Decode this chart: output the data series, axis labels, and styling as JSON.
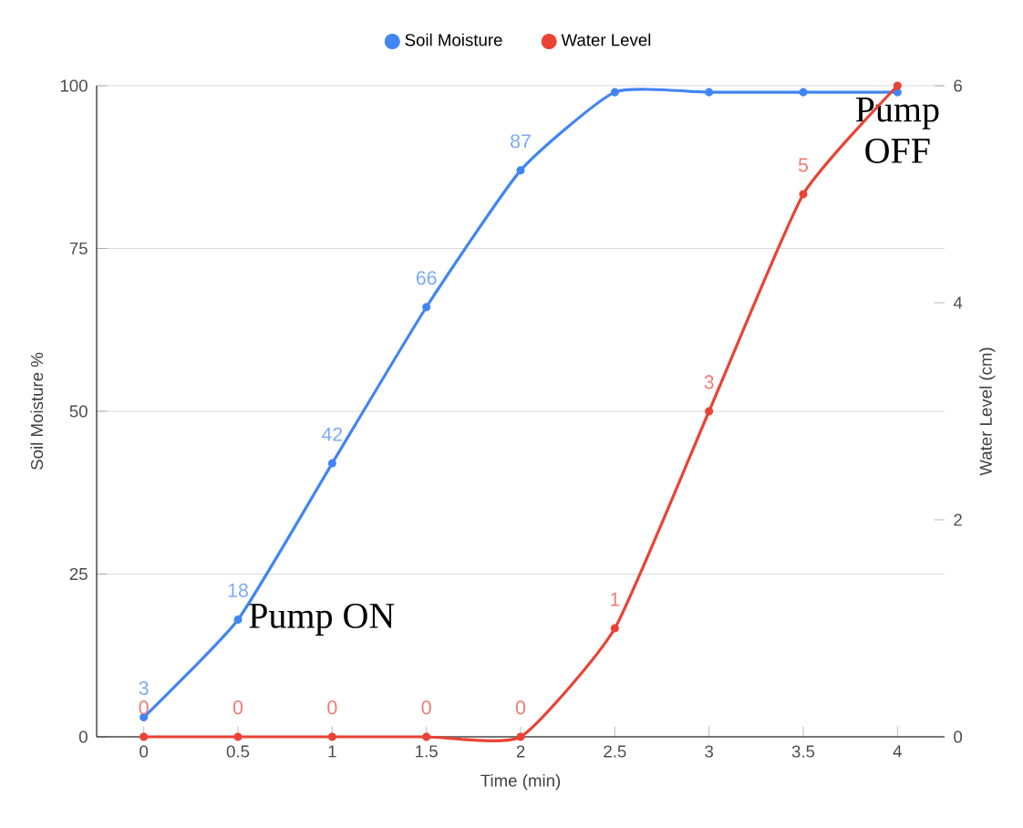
{
  "chart_data": {
    "type": "line",
    "xlabel": "Time (min)",
    "ylabel": "Soil Moisture %",
    "y2label": "Water Level (cm)",
    "x": [
      0,
      0.5,
      1,
      1.5,
      2,
      2.5,
      3,
      3.5,
      4
    ],
    "series": [
      {
        "name": "Soil Moisture",
        "color": "#4285f4",
        "values": [
          3,
          18,
          42,
          66,
          87,
          99,
          99,
          99,
          99
        ],
        "value_labels": [
          "3",
          "18",
          "42",
          "66",
          "87",
          null,
          null,
          null,
          null
        ]
      },
      {
        "name": "Water Level",
        "color": "#ea4335",
        "axis": "y2",
        "values": [
          0,
          0,
          0,
          0,
          0,
          1,
          3,
          5,
          6
        ],
        "value_labels": [
          "0",
          "0",
          "0",
          "0",
          "0",
          "1",
          "3",
          "5",
          null
        ]
      }
    ],
    "xlim": [
      -0.25,
      4.25
    ],
    "xticks": [
      0,
      0.5,
      1,
      1.5,
      2,
      2.5,
      3,
      3.5,
      4
    ],
    "ylim": [
      0,
      100
    ],
    "yticks": [
      0,
      25,
      50,
      75,
      100
    ],
    "y2lim": [
      0,
      6
    ],
    "y2ticks": [
      0,
      2,
      4,
      6
    ],
    "grid": "y",
    "legend": "top",
    "marker": "circle",
    "line_style": "solid",
    "annotations": [
      {
        "text": "Pump ON",
        "x": 0.5,
        "y": 18
      },
      {
        "text": "Pump OFF",
        "x": 4,
        "y": 99
      }
    ]
  }
}
